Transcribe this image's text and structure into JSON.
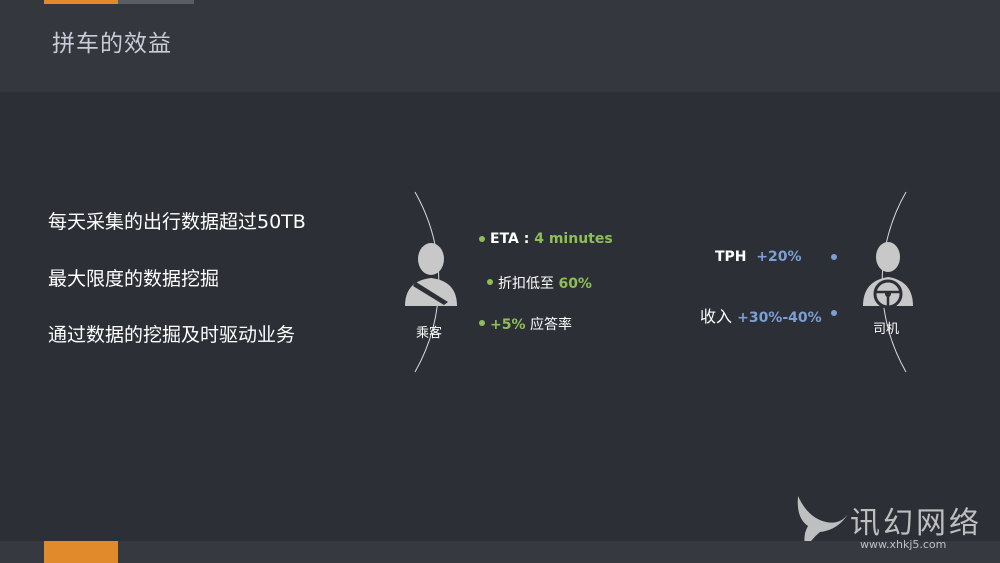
{
  "header": {
    "title": "拼车的效益"
  },
  "bullets": [
    "每天采集的出行数据超过50TB",
    "最大限度的数据挖掘",
    "通过数据的挖掘及时驱动业务"
  ],
  "passenger": {
    "label": "乘客",
    "icon": "passenger-person-icon",
    "metrics": [
      {
        "prefix": "ETA : ",
        "value": "4 minutes",
        "suffix": ""
      },
      {
        "prefix": "折扣低至 ",
        "value": "60%",
        "suffix": ""
      },
      {
        "prefix": "",
        "value": "+5%",
        "suffix": " 应答率"
      }
    ],
    "accent_color": "#8fbe58"
  },
  "driver": {
    "label": "司机",
    "icon": "driver-steering-wheel-icon",
    "metrics": [
      {
        "prefix": "TPH  ",
        "value": "+20%"
      },
      {
        "prefix": "收入 ",
        "value": "+30%-40%"
      }
    ],
    "accent_color": "#7c9fd6"
  },
  "watermark": {
    "text": "讯幻网络",
    "url": "www.xhkj5.com"
  },
  "colors": {
    "background": "#2c2f35",
    "header": "#34373e",
    "orange": "#e08a2c",
    "green": "#8fbe58",
    "blue": "#7c9fd6"
  }
}
